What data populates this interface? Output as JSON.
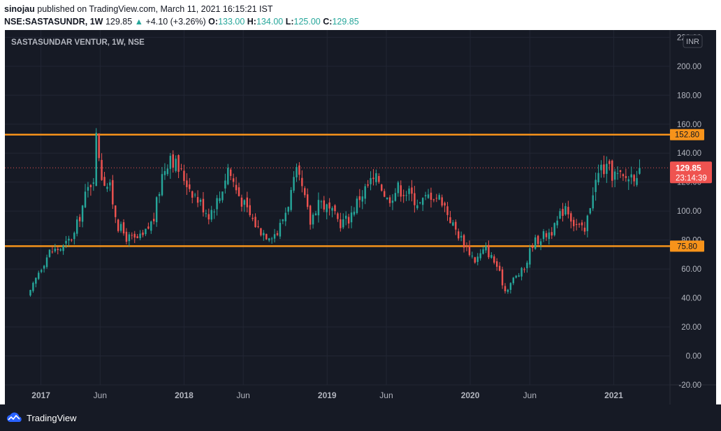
{
  "header": {
    "publisher": "sinojau",
    "published_text": "published on TradingView.com, March 11, 2021 16:15:21 IST",
    "symbol_interval": "NSE:SASTASUNDR, 1W",
    "last_price": "129.85",
    "change_arrow": "▲",
    "change": "+4.10 (+3.26%)",
    "o_label": "O:",
    "o_value": "133.00",
    "h_label": "H:",
    "h_value": "134.00",
    "l_label": "L:",
    "l_value": "125.00",
    "c_label": "C:",
    "c_value": "129.85"
  },
  "footer": {
    "brand": "TradingView"
  },
  "colors": {
    "background": "#161a25",
    "grid": "#222634",
    "up": "#26a69a",
    "down": "#ef5350",
    "level_line": "#f7931a",
    "axis_text": "#b2b5be"
  },
  "chart_data": {
    "type": "candlestick",
    "legend_text": "SASTASUNDAR VENTUR, 1W, NSE",
    "currency_label": "INR",
    "y_ticks": [
      "220.00",
      "200.00",
      "180.00",
      "160.00",
      "140.00",
      "120.00",
      "100.00",
      "80.00",
      "60.00",
      "40.00",
      "20.00",
      "0.00",
      "-20.00"
    ],
    "y_tick_values": [
      220,
      200,
      180,
      160,
      140,
      120,
      100,
      80,
      60,
      40,
      20,
      0,
      -20
    ],
    "ylim": [
      -20,
      225
    ],
    "x_ticks": [
      "2017",
      "Jun",
      "2018",
      "Jun",
      "2019",
      "Jun",
      "2020",
      "Jun",
      "2021"
    ],
    "x_tick_dates": [
      "2017-01-01",
      "2017-06-01",
      "2018-01-01",
      "2018-06-01",
      "2019-01-01",
      "2019-06-01",
      "2020-01-01",
      "2020-06-01",
      "2021-01-01"
    ],
    "xlim": [
      "2016-10-01",
      "2021-05-21"
    ],
    "horizontal_levels": [
      {
        "value": 152.8,
        "label": "152.80"
      },
      {
        "value": 75.8,
        "label": "75.80"
      }
    ],
    "last_price": {
      "value": 129.85,
      "label": "129.85",
      "countdown": "23:14:39"
    },
    "anchors": [
      [
        "2016-12-05",
        44
      ],
      [
        "2016-12-26",
        58
      ],
      [
        "2017-01-23",
        72
      ],
      [
        "2017-02-27",
        75
      ],
      [
        "2017-03-27",
        84
      ],
      [
        "2017-04-24",
        110
      ],
      [
        "2017-05-15",
        125
      ],
      [
        "2017-05-22",
        150
      ],
      [
        "2017-05-29",
        140
      ],
      [
        "2017-06-05",
        125
      ],
      [
        "2017-06-26",
        115
      ],
      [
        "2017-07-17",
        90
      ],
      [
        "2017-08-07",
        82
      ],
      [
        "2017-08-28",
        80
      ],
      [
        "2017-09-18",
        82
      ],
      [
        "2017-10-16",
        95
      ],
      [
        "2017-11-06",
        125
      ],
      [
        "2017-11-27",
        140
      ],
      [
        "2017-12-11",
        132
      ],
      [
        "2018-01-08",
        120
      ],
      [
        "2018-02-05",
        108
      ],
      [
        "2018-03-05",
        98
      ],
      [
        "2018-04-02",
        110
      ],
      [
        "2018-04-23",
        130
      ],
      [
        "2018-05-14",
        115
      ],
      [
        "2018-06-11",
        100
      ],
      [
        "2018-07-09",
        88
      ],
      [
        "2018-07-30",
        84
      ],
      [
        "2018-08-27",
        85
      ],
      [
        "2018-09-17",
        100
      ],
      [
        "2018-10-15",
        125
      ],
      [
        "2018-10-29",
        115
      ],
      [
        "2018-11-19",
        92
      ],
      [
        "2018-12-10",
        108
      ],
      [
        "2019-01-07",
        100
      ],
      [
        "2019-02-04",
        92
      ],
      [
        "2019-02-25",
        95
      ],
      [
        "2019-03-25",
        110
      ],
      [
        "2019-04-22",
        120
      ],
      [
        "2019-05-13",
        122
      ],
      [
        "2019-06-03",
        108
      ],
      [
        "2019-07-01",
        116
      ],
      [
        "2019-07-29",
        112
      ],
      [
        "2019-08-26",
        105
      ],
      [
        "2019-09-23",
        112
      ],
      [
        "2019-10-21",
        108
      ],
      [
        "2019-11-18",
        90
      ],
      [
        "2019-12-16",
        78
      ],
      [
        "2020-01-13",
        66
      ],
      [
        "2020-02-10",
        74
      ],
      [
        "2020-03-09",
        62
      ],
      [
        "2020-03-30",
        45
      ],
      [
        "2020-04-20",
        53
      ],
      [
        "2020-05-18",
        60
      ],
      [
        "2020-06-08",
        78
      ],
      [
        "2020-07-06",
        83
      ],
      [
        "2020-08-03",
        88
      ],
      [
        "2020-08-31",
        105
      ],
      [
        "2020-09-21",
        92
      ],
      [
        "2020-10-19",
        85
      ],
      [
        "2020-11-09",
        115
      ],
      [
        "2020-11-30",
        130
      ],
      [
        "2020-12-28",
        126
      ],
      [
        "2021-01-25",
        122
      ],
      [
        "2021-02-22",
        126
      ],
      [
        "2021-03-08",
        129.85
      ]
    ]
  }
}
